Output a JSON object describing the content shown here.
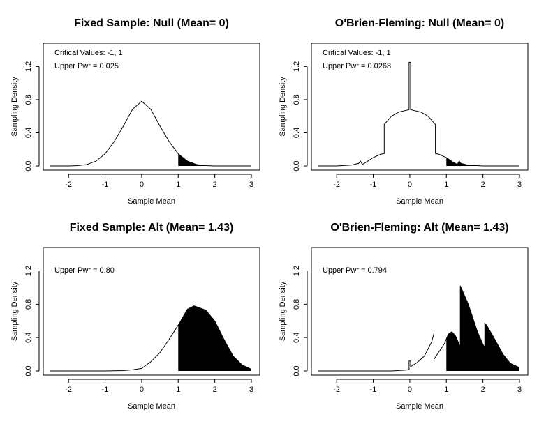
{
  "figure": {
    "window_title": "",
    "background": "#ffffff"
  },
  "chart_data": [
    {
      "type": "line",
      "title": "Fixed Sample: Null (Mean= 0)",
      "xlabel": "Sample Mean",
      "ylabel": "Sampling Density",
      "xlim": [
        -2.5,
        3.0
      ],
      "ylim": [
        0.0,
        1.43
      ],
      "xticks": [
        -2,
        -1,
        0,
        1,
        2,
        3
      ],
      "yticks": [
        "0.0",
        "0.4",
        "0.8",
        "1.2"
      ],
      "annotations": [
        "Critical Values: -1, 1",
        "Upper Pwr = 0.025"
      ],
      "shaded_from": 1.0,
      "x": [
        -2.5,
        -2.25,
        -2.0,
        -1.75,
        -1.5,
        -1.25,
        -1.0,
        -0.75,
        -0.5,
        -0.25,
        0.0,
        0.25,
        0.5,
        0.75,
        1.0,
        1.25,
        1.5,
        1.75,
        2.0,
        2.25,
        2.5,
        2.75,
        3.0
      ],
      "y": [
        0.0,
        0.0,
        0.0,
        0.004,
        0.017,
        0.058,
        0.146,
        0.294,
        0.48,
        0.683,
        0.78,
        0.683,
        0.48,
        0.294,
        0.146,
        0.058,
        0.017,
        0.004,
        0.0,
        0.0,
        0.0,
        0.0,
        0.0
      ]
    },
    {
      "type": "line",
      "title": "O'Brien-Fleming: Null (Mean= 0)",
      "xlabel": "Sample Mean",
      "ylabel": "Sampling Density",
      "xlim": [
        -2.5,
        3.0
      ],
      "ylim": [
        0.0,
        1.43
      ],
      "xticks": [
        -2,
        -1,
        0,
        1,
        2,
        3
      ],
      "yticks": [
        "0.0",
        "0.4",
        "0.8",
        "1.2"
      ],
      "annotations": [
        "Critical Values: -1, 1",
        "Upper Pwr = 0.0268"
      ],
      "shaded_from": 1.0,
      "x": [
        -2.5,
        -2.0,
        -1.6,
        -1.4,
        -1.35,
        -1.3,
        -1.25,
        -1.0,
        -0.8,
        -0.7,
        -0.7,
        -0.5,
        -0.3,
        -0.1,
        -0.02,
        -0.02,
        0.0,
        0.02,
        0.02,
        0.1,
        0.3,
        0.5,
        0.7,
        0.7,
        0.8,
        1.0,
        1.2,
        1.3,
        1.35,
        1.4,
        1.6,
        2.0,
        2.5,
        3.0
      ],
      "y": [
        0.0,
        0.0,
        0.01,
        0.03,
        0.06,
        0.02,
        0.03,
        0.1,
        0.14,
        0.15,
        0.5,
        0.6,
        0.65,
        0.67,
        0.68,
        1.25,
        1.25,
        1.25,
        0.68,
        0.67,
        0.65,
        0.6,
        0.5,
        0.15,
        0.14,
        0.1,
        0.04,
        0.02,
        0.06,
        0.03,
        0.01,
        0.0,
        0.0,
        0.0
      ]
    },
    {
      "type": "line",
      "title": "Fixed Sample: Alt (Mean= 1.43)",
      "xlabel": "Sample Mean",
      "ylabel": "Sampling Density",
      "xlim": [
        -2.5,
        3.0
      ],
      "ylim": [
        0.0,
        1.43
      ],
      "xticks": [
        -2,
        -1,
        0,
        1,
        2,
        3
      ],
      "yticks": [
        "0.0",
        "0.4",
        "0.8",
        "1.2"
      ],
      "annotations": [
        "Upper Pwr = 0.80"
      ],
      "shaded_from": 1.0,
      "x": [
        -2.5,
        -2.0,
        -1.5,
        -1.0,
        -0.75,
        -0.5,
        -0.25,
        0.0,
        0.25,
        0.5,
        0.75,
        1.0,
        1.25,
        1.43,
        1.75,
        2.0,
        2.25,
        2.5,
        2.75,
        3.0
      ],
      "y": [
        0.0,
        0.0,
        0.0,
        0.0,
        0.002,
        0.004,
        0.013,
        0.03,
        0.11,
        0.22,
        0.38,
        0.55,
        0.74,
        0.78,
        0.73,
        0.6,
        0.38,
        0.18,
        0.07,
        0.02
      ]
    },
    {
      "type": "line",
      "title": "O'Brien-Fleming: Alt (Mean= 1.43)",
      "xlabel": "Sample Mean",
      "ylabel": "Sampling Density",
      "xlim": [
        -2.5,
        3.0
      ],
      "ylim": [
        0.0,
        1.43
      ],
      "xticks": [
        -2,
        -1,
        0,
        1,
        2,
        3
      ],
      "yticks": [
        "0.0",
        "0.4",
        "0.8",
        "1.2"
      ],
      "annotations": [
        "Upper Pwr = 0.794"
      ],
      "shaded_from": 1.0,
      "x": [
        -2.5,
        -1.5,
        -1.0,
        -0.5,
        -0.1,
        -0.02,
        -0.02,
        0.0,
        0.02,
        0.02,
        0.2,
        0.4,
        0.6,
        0.66,
        0.66,
        0.8,
        0.95,
        1.05,
        1.15,
        1.25,
        1.35,
        1.38,
        1.38,
        1.6,
        1.85,
        2.0,
        2.05,
        2.05,
        2.1,
        2.3,
        2.55,
        2.75,
        3.0
      ],
      "y": [
        0.0,
        0.0,
        0.0,
        0.0,
        0.01,
        0.02,
        0.12,
        0.12,
        0.12,
        0.05,
        0.1,
        0.18,
        0.35,
        0.45,
        0.14,
        0.23,
        0.33,
        0.44,
        0.47,
        0.42,
        0.32,
        0.28,
        1.02,
        0.8,
        0.47,
        0.32,
        0.28,
        0.57,
        0.55,
        0.4,
        0.2,
        0.09,
        0.04
      ]
    }
  ]
}
